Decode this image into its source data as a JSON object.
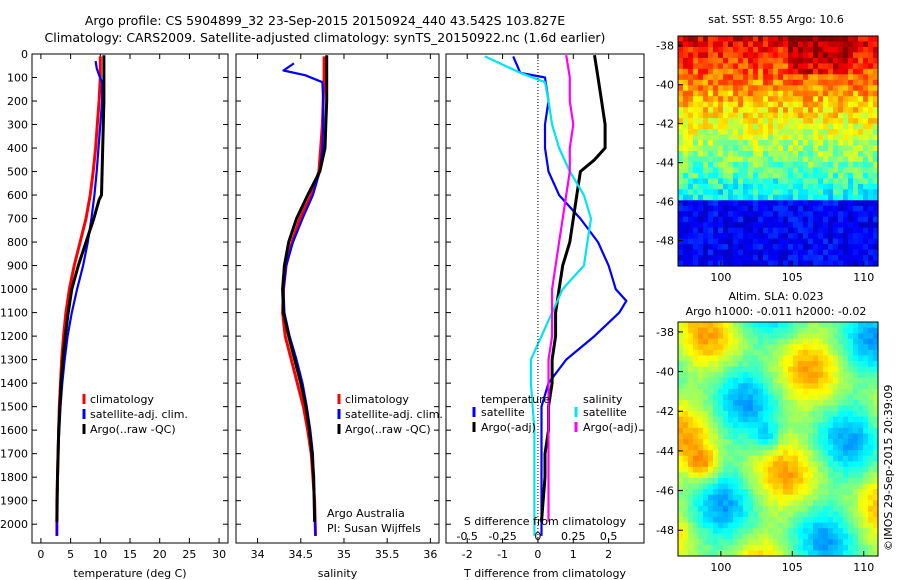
{
  "header": {
    "line1": "Argo profile: CS 5904899_32 23-Sep-2015 20150924_440 43.542S 103.827E",
    "line2": "Climatology: CARS2009. Satellite-adjusted climatology: synTS_20150922.nc (1.6d earlier)"
  },
  "colors": {
    "climatology": "#ff0000",
    "satellite": "#0000ff",
    "argo": "#000000",
    "sal_satellite": "#00e5ee",
    "sal_argo": "#ff00ff"
  },
  "chart_data": [
    {
      "type": "line",
      "id": "temperature",
      "xlabel": "temperature (deg C)",
      "ylabel": "",
      "xlim": [
        -1.5,
        31.5
      ],
      "ylim": [
        2080,
        0
      ],
      "xticks": [
        0,
        5,
        10,
        15,
        20,
        25,
        30
      ],
      "yticks": [
        0,
        100,
        200,
        300,
        400,
        500,
        600,
        700,
        800,
        900,
        1000,
        1100,
        1200,
        1300,
        1400,
        1500,
        1600,
        1700,
        1800,
        1900,
        2000
      ],
      "legend": [
        "climatology",
        "satellite-adj. clim.",
        "Argo(..raw -QC)"
      ],
      "series": [
        {
          "name": "climatology",
          "color": "climatology",
          "x": [
            10.0,
            10.0,
            9.8,
            9.5,
            9.2,
            8.8,
            8.3,
            7.6,
            6.6,
            5.6,
            4.8,
            4.2,
            3.8,
            3.5,
            3.3,
            3.1,
            3.0,
            2.9,
            2.8,
            2.7,
            2.7
          ],
          "y": [
            10,
            100,
            200,
            300,
            400,
            500,
            600,
            700,
            800,
            900,
            1000,
            1100,
            1200,
            1300,
            1400,
            1500,
            1600,
            1700,
            1800,
            1900,
            2050
          ]
        },
        {
          "name": "satellite-adj. clim.",
          "color": "satellite",
          "x": [
            9.2,
            9.4,
            9.8,
            10.3,
            10.3,
            10.0,
            9.7,
            9.4,
            9.0,
            8.5,
            7.9,
            7.1,
            6.1,
            5.2,
            4.5,
            4.0,
            3.6,
            3.3,
            3.1,
            2.9,
            2.8,
            2.7,
            2.7
          ],
          "y": [
            30,
            60,
            90,
            120,
            200,
            300,
            400,
            500,
            600,
            700,
            800,
            900,
            1000,
            1100,
            1200,
            1300,
            1400,
            1500,
            1600,
            1700,
            1800,
            1900,
            2050
          ]
        },
        {
          "name": "Argo(..raw -QC)",
          "color": "argo",
          "x": [
            10.6,
            10.6,
            10.6,
            10.5,
            10.4,
            10.3,
            10.2,
            9.8,
            8.9,
            7.6,
            6.3,
            5.2,
            4.6,
            4.1,
            3.7,
            3.4,
            3.2,
            3.0,
            2.9,
            2.8,
            2.7
          ],
          "y": [
            5,
            100,
            200,
            300,
            400,
            500,
            600,
            620,
            700,
            800,
            900,
            1000,
            1100,
            1200,
            1300,
            1400,
            1500,
            1600,
            1700,
            1800,
            1990
          ]
        }
      ]
    },
    {
      "type": "line",
      "id": "salinity",
      "xlabel": "salinity",
      "ylabel": "",
      "xlim": [
        33.75,
        36.1
      ],
      "ylim": [
        2080,
        0
      ],
      "xticks": [
        34,
        34.5,
        35,
        35.5,
        36
      ],
      "legend": [
        "climatology",
        "satellite-adj. clim.",
        "Argo(..raw -QC)"
      ],
      "footer": [
        "Argo Australia",
        "PI: Susan Wijffels"
      ],
      "series": [
        {
          "name": "climatology",
          "color": "climatology",
          "x": [
            34.77,
            34.77,
            34.76,
            34.75,
            34.73,
            34.71,
            34.62,
            34.49,
            34.4,
            34.33,
            34.3,
            34.29,
            34.32,
            34.39,
            34.46,
            34.53,
            34.58,
            34.62,
            34.64,
            34.66,
            34.67
          ],
          "y": [
            10,
            100,
            200,
            300,
            400,
            500,
            600,
            700,
            800,
            900,
            1000,
            1100,
            1200,
            1300,
            1400,
            1500,
            1600,
            1700,
            1800,
            1900,
            2050
          ]
        },
        {
          "name": "satellite-adj. clim.",
          "color": "satellite",
          "x": [
            34.42,
            34.3,
            34.55,
            34.75,
            34.76,
            34.76,
            34.75,
            34.72,
            34.64,
            34.52,
            34.41,
            34.33,
            34.3,
            34.31,
            34.37,
            34.45,
            34.52,
            34.57,
            34.61,
            34.64,
            34.65,
            34.67
          ],
          "y": [
            40,
            70,
            90,
            120,
            200,
            300,
            400,
            500,
            600,
            700,
            800,
            900,
            1000,
            1100,
            1200,
            1300,
            1400,
            1500,
            1600,
            1700,
            1800,
            2050
          ]
        },
        {
          "name": "Argo(..raw -QC)",
          "color": "argo",
          "x": [
            34.8,
            34.8,
            34.8,
            34.79,
            34.78,
            34.72,
            34.58,
            34.45,
            34.36,
            34.31,
            34.29,
            34.3,
            34.36,
            34.43,
            34.5,
            34.56,
            34.6,
            34.63,
            34.65,
            34.66
          ],
          "y": [
            5,
            100,
            200,
            300,
            400,
            500,
            600,
            700,
            800,
            900,
            1000,
            1100,
            1200,
            1300,
            1400,
            1500,
            1600,
            1700,
            1800,
            1990
          ]
        }
      ]
    },
    {
      "type": "line",
      "id": "differences",
      "xlabel": "T difference from climatology",
      "xlabel2": "S difference from climatology",
      "xlim": [
        -2.6,
        3.0
      ],
      "ylim": [
        2080,
        0
      ],
      "xticks": [
        -2,
        -1,
        0,
        1,
        2
      ],
      "xticks_salinity": [
        "-0.5",
        "-0.25",
        "0",
        "0.25",
        "0.5"
      ],
      "legend_temperature": {
        "title": "temperature",
        "entries": [
          "satellite",
          "Argo(-adj)"
        ]
      },
      "legend_salinity": {
        "title": "salinity",
        "entries": [
          "satellite",
          "Argo(-adj)"
        ]
      },
      "series": [
        {
          "name": "T satellite",
          "color": "satellite",
          "x": [
            -0.7,
            -0.5,
            0.2,
            0.3,
            0.2,
            0.2,
            0.3,
            0.6,
            1.2,
            1.7,
            2.0,
            2.1,
            2.2,
            2.5,
            2.3,
            1.6,
            0.8,
            0.3,
            0.1,
            0.1,
            0.1,
            0.1
          ],
          "y": [
            10,
            80,
            100,
            200,
            300,
            400,
            500,
            600,
            700,
            800,
            900,
            950,
            1000,
            1050,
            1100,
            1200,
            1300,
            1400,
            1500,
            1700,
            1900,
            2050
          ]
        },
        {
          "name": "T Argo(-adj)",
          "color": "argo",
          "x": [
            1.6,
            1.7,
            1.8,
            1.9,
            1.9,
            1.6,
            1.2,
            1.1,
            1.0,
            0.9,
            0.7,
            0.6,
            0.5,
            0.5,
            0.4,
            0.4,
            0.3,
            0.3,
            0.2,
            0.2,
            0.1
          ],
          "y": [
            5,
            100,
            200,
            300,
            400,
            450,
            500,
            600,
            700,
            800,
            900,
            1000,
            1100,
            1200,
            1300,
            1400,
            1500,
            1600,
            1700,
            1800,
            1990
          ]
        },
        {
          "name": "S satellite",
          "color": "sal_satellite",
          "x": [
            -1.5,
            -0.5,
            0.2,
            0.3,
            0.4,
            0.6,
            0.9,
            1.3,
            1.5,
            1.4,
            1.3,
            1.0,
            0.7,
            0.4,
            0.1,
            -0.2,
            -0.2,
            -0.1,
            -0.1,
            -0.1
          ],
          "y": [
            10,
            80,
            120,
            200,
            300,
            400,
            500,
            600,
            700,
            800,
            900,
            950,
            1000,
            1100,
            1200,
            1300,
            1400,
            1600,
            1800,
            2050
          ]
        },
        {
          "name": "S Argo(-adj)",
          "color": "sal_argo",
          "x": [
            0.8,
            0.9,
            0.9,
            1.0,
            0.9,
            0.9,
            0.8,
            0.7,
            0.6,
            0.5,
            0.4,
            0.4,
            0.4,
            0.3,
            0.3,
            0.3,
            0.3,
            0.3,
            0.3,
            0.3,
            0.3
          ],
          "y": [
            5,
            100,
            200,
            300,
            400,
            500,
            600,
            700,
            800,
            900,
            1000,
            1100,
            1200,
            1300,
            1400,
            1500,
            1600,
            1700,
            1800,
            1900,
            1990
          ]
        }
      ]
    },
    {
      "type": "heatmap",
      "id": "sst_map",
      "title": "sat. SST: 8.55 Argo: 10.6",
      "xlim": [
        97,
        111
      ],
      "ylim": [
        -49.3,
        -37.5
      ],
      "xticks": [
        100,
        105,
        110
      ],
      "yticks": [
        -38,
        -40,
        -42,
        -44,
        -46,
        -48
      ]
    },
    {
      "type": "heatmap",
      "id": "sla_map",
      "title": "Altim. SLA: 0.023",
      "subtitle": "Argo h1000: -0.011 h2000: -0.02",
      "xlim": [
        97,
        111
      ],
      "ylim": [
        -49.3,
        -37.5
      ],
      "xticks": [
        100,
        105,
        110
      ],
      "yticks": [
        -38,
        -40,
        -42,
        -44,
        -46,
        -48
      ]
    }
  ],
  "footer": {
    "credit": "©IMOS 29-Sep-2015 20:39:09"
  }
}
